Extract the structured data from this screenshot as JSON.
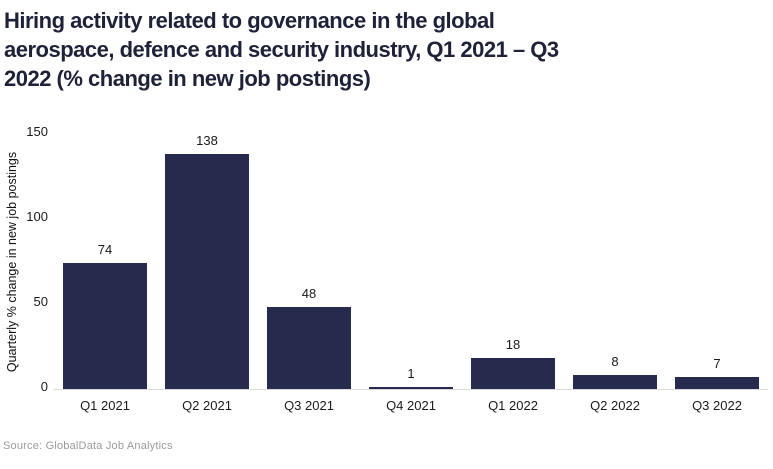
{
  "header": {
    "title_lines": [
      "Hiring activity related to governance in the global",
      "aerospace, defence and security industry, Q1 2021 – Q3",
      "2022 (% change in new job postings)"
    ]
  },
  "chart_data": {
    "type": "bar",
    "title": "Hiring activity related to governance in the global aerospace, defence and security industry, Q1 2021 – Q3 2022 (% change in new job postings)",
    "categories": [
      "Q1 2021",
      "Q2 2021",
      "Q3 2021",
      "Q4 2021",
      "Q1 2022",
      "Q2 2022",
      "Q3 2022"
    ],
    "values": [
      74,
      138,
      48,
      1,
      18,
      8,
      7
    ],
    "xlabel": "",
    "ylabel": "Quarterly % change in new job postings",
    "ylim": [
      0,
      150
    ],
    "yticks": [
      0,
      50,
      100,
      150
    ],
    "grid": false,
    "legend": "none",
    "bar_color": "#262a4c"
  },
  "footer": {
    "source": "Source: GlobalData Job Analytics"
  },
  "colors": {
    "title_text": "#1e2238",
    "bar": "#262a4c",
    "axis_line": "#d9d9d9",
    "tick_text": "#1a1a1a",
    "source_text": "#9b9b9b",
    "background": "#ffffff"
  }
}
